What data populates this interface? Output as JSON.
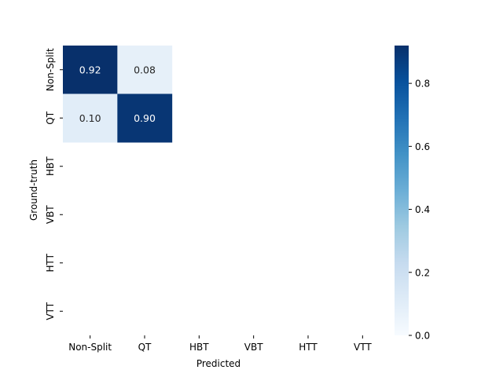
{
  "chart_data": {
    "type": "heatmap",
    "title": "",
    "xlabel": "Predicted",
    "ylabel": "Ground-truth",
    "x_categories": [
      "Non-Split",
      "QT",
      "HBT",
      "VBT",
      "HTT",
      "VTT"
    ],
    "y_categories": [
      "Non-Split",
      "QT",
      "HBT",
      "VBT",
      "HTT",
      "VTT"
    ],
    "cells": [
      {
        "row": 0,
        "col": 0,
        "value": 0.92,
        "label": "0.92"
      },
      {
        "row": 0,
        "col": 1,
        "value": 0.08,
        "label": "0.08"
      },
      {
        "row": 1,
        "col": 0,
        "value": 0.1,
        "label": "0.10"
      },
      {
        "row": 1,
        "col": 1,
        "value": 0.9,
        "label": "0.90"
      }
    ],
    "colorbar": {
      "colormap": "Blues",
      "vmin": 0.0,
      "vmax": 0.92,
      "ticks": [
        0.0,
        0.2,
        0.4,
        0.6,
        0.8
      ],
      "tick_labels": [
        "0.0",
        "0.2",
        "0.4",
        "0.6",
        "0.8"
      ]
    }
  }
}
